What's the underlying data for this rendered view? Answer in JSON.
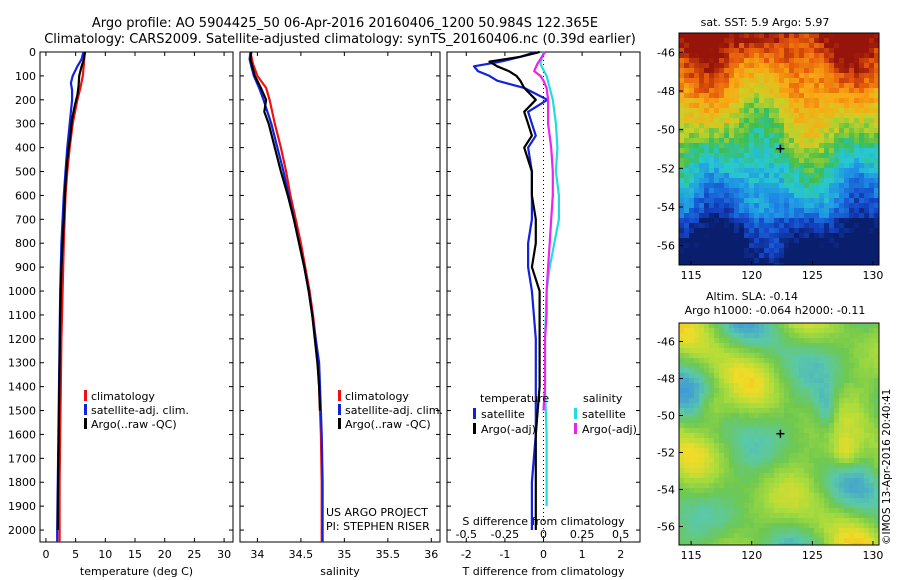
{
  "header": {
    "line1": "Argo profile: AO 5904425_50 06-Apr-2016 20160406_1200 50.984S 122.365E",
    "line2": "Climatology: CARS2009. Satellite-adjusted climatology: synTS_20160406.nc (0.39d earlier)"
  },
  "colors": {
    "climatology": "#ee1111",
    "satellite_adj": "#1122dd",
    "argo": "#000000",
    "salinity_satellite": "#22dddd",
    "salinity_argo": "#ee22ee"
  },
  "depth_ticks": [
    0,
    100,
    200,
    300,
    400,
    500,
    600,
    700,
    800,
    900,
    1000,
    1100,
    1200,
    1300,
    1400,
    1500,
    1600,
    1700,
    1800,
    1900,
    2000
  ],
  "chart_data": [
    {
      "type": "line",
      "name": "temperature_panel",
      "xlabel": "temperature (deg C)",
      "xlim": [
        -1,
        31.5
      ],
      "ylim": [
        2050,
        0
      ],
      "xticks": [
        0,
        5,
        10,
        15,
        20,
        25,
        30
      ],
      "xtick_labels": [
        "0",
        "5",
        "10",
        "15",
        "20",
        "25",
        "30"
      ],
      "legend": [
        "climatology",
        "satellite-adj. clim.",
        "Argo(..raw -QC)"
      ],
      "series": [
        {
          "name": "climatology",
          "color": "#ee1111",
          "depth": [
            0,
            50,
            100,
            150,
            200,
            250,
            300,
            400,
            500,
            600,
            800,
            1000,
            1200,
            1400,
            1600,
            1800,
            2000,
            2050
          ],
          "values": [
            6.5,
            6.4,
            6.2,
            5.8,
            5.3,
            4.9,
            4.5,
            4.0,
            3.6,
            3.3,
            3.0,
            2.8,
            2.6,
            2.5,
            2.4,
            2.3,
            2.3,
            2.3
          ]
        },
        {
          "name": "satellite-adj. clim.",
          "color": "#1122dd",
          "depth": [
            0,
            30,
            60,
            100,
            130,
            160,
            200,
            300,
            400,
            500,
            600,
            800,
            1000,
            1200,
            1400,
            1600,
            1800,
            2000,
            2050
          ],
          "values": [
            6.3,
            6.0,
            5.3,
            4.5,
            4.2,
            4.4,
            4.4,
            4.0,
            3.6,
            3.3,
            3.0,
            2.6,
            2.4,
            2.3,
            2.2,
            2.1,
            2.0,
            1.9,
            1.9
          ]
        },
        {
          "name": "Argo(..raw -QC)",
          "color": "#000000",
          "depth": [
            0,
            30,
            60,
            100,
            140,
            180,
            220,
            280,
            350,
            450,
            550,
            700,
            900,
            1100,
            1300,
            1500,
            1700,
            1900,
            2000
          ],
          "values": [
            6.6,
            6.4,
            6.0,
            5.6,
            5.5,
            5.3,
            4.9,
            4.4,
            4.1,
            3.6,
            3.3,
            3.0,
            2.6,
            2.4,
            2.3,
            2.2,
            2.1,
            2.0,
            2.0
          ]
        }
      ]
    },
    {
      "type": "line",
      "name": "salinity_panel",
      "xlabel": "salinity",
      "xlim": [
        33.8,
        36.1
      ],
      "ylim": [
        2050,
        0
      ],
      "xticks": [
        34,
        34.5,
        35,
        35.5,
        36
      ],
      "xtick_labels": [
        "34",
        "34.5",
        "35",
        "35.5",
        "36"
      ],
      "legend": [
        "climatology",
        "satellite-adj. clim.",
        "Argo(..raw -QC)"
      ],
      "annotation": [
        "US ARGO PROJECT",
        "PI: STEPHEN RISER"
      ],
      "series": [
        {
          "name": "climatology",
          "color": "#ee1111",
          "depth": [
            0,
            50,
            100,
            150,
            200,
            300,
            400,
            500,
            600,
            700,
            800,
            900,
            1000,
            1100,
            1200,
            1300,
            1400,
            1600,
            1800,
            2000,
            2050
          ],
          "values": [
            33.92,
            33.95,
            34.0,
            34.1,
            34.14,
            34.2,
            34.27,
            34.33,
            34.38,
            34.44,
            34.5,
            34.55,
            34.6,
            34.64,
            34.67,
            34.7,
            34.71,
            34.73,
            34.74,
            34.74,
            34.74
          ]
        },
        {
          "name": "satellite-adj. clim.",
          "color": "#1122dd",
          "depth": [
            0,
            30,
            60,
            100,
            150,
            200,
            300,
            400,
            500,
            600,
            700,
            800,
            900,
            1000,
            1100,
            1200,
            1300,
            1400,
            1600,
            1800,
            2000,
            2050
          ],
          "values": [
            33.92,
            33.91,
            33.93,
            33.96,
            34.02,
            34.07,
            34.16,
            34.23,
            34.3,
            34.36,
            34.42,
            34.48,
            34.54,
            34.59,
            34.63,
            34.67,
            34.71,
            34.72,
            34.74,
            34.75,
            34.75,
            34.75
          ]
        },
        {
          "name": "Argo(..raw -QC)",
          "color": "#000000",
          "depth": [
            0,
            30,
            60,
            100,
            150,
            200,
            250,
            300,
            400,
            500,
            600,
            700,
            800,
            900,
            1000,
            1100,
            1200,
            1300,
            1400,
            1500
          ],
          "values": [
            33.93,
            33.92,
            33.94,
            33.97,
            34.04,
            34.1,
            34.08,
            34.13,
            34.2,
            34.27,
            34.35,
            34.42,
            34.48,
            34.54,
            34.59,
            34.63,
            34.66,
            34.69,
            34.71,
            34.72
          ]
        }
      ]
    },
    {
      "type": "line",
      "name": "difference_panel",
      "xlabel": "T difference from climatology",
      "xlabel_top": "S difference from climatology",
      "xlim": [
        -2.5,
        2.5
      ],
      "ylim": [
        2050,
        0
      ],
      "xticks": [
        -2,
        -1,
        0,
        1,
        2
      ],
      "xtick_labels": [
        "-2",
        "-1",
        "0",
        "1",
        "2"
      ],
      "s_ticks": [
        -0.5,
        -0.25,
        0,
        0.25,
        0.5
      ],
      "s_tick_labels": [
        "-0.5",
        "-0.25",
        "0",
        "0.25",
        "0.5"
      ],
      "legend_title_left": "temperature",
      "legend_title_right": "salinity",
      "legend": [
        "satellite",
        "Argo(-adj)",
        "satellite",
        "Argo(-adj)"
      ],
      "series": [
        {
          "name": "satellite",
          "group": "temperature",
          "color": "#1122dd",
          "depth": [
            0,
            20,
            40,
            60,
            80,
            100,
            120,
            150,
            200,
            250,
            300,
            350,
            400,
            500,
            600,
            700,
            800,
            900,
            1000,
            1200,
            1400,
            1600,
            1800,
            2000
          ],
          "values": [
            -0.2,
            -0.6,
            -1.1,
            -1.8,
            -1.7,
            -1.4,
            -1.2,
            -0.5,
            0.1,
            -0.4,
            -0.3,
            -0.2,
            -0.4,
            -0.3,
            -0.3,
            -0.3,
            -0.4,
            -0.4,
            -0.3,
            -0.2,
            -0.2,
            -0.2,
            -0.3,
            -0.3
          ]
        },
        {
          "name": "Argo(-adj)",
          "group": "temperature",
          "color": "#000000",
          "depth": [
            0,
            20,
            40,
            60,
            80,
            100,
            120,
            150,
            200,
            250,
            300,
            350,
            400,
            500,
            600,
            700,
            800,
            900,
            1000,
            1200,
            1400,
            1600,
            1800,
            2000
          ],
          "values": [
            -0.1,
            -0.6,
            -1.4,
            -1.2,
            -0.9,
            -0.7,
            -0.6,
            -0.5,
            -0.2,
            -0.5,
            -0.4,
            -0.3,
            -0.5,
            -0.3,
            -0.3,
            -0.2,
            -0.2,
            -0.3,
            -0.1,
            -0.1,
            -0.1,
            -0.2,
            -0.2,
            -0.2
          ]
        },
        {
          "name": "satellite",
          "group": "salinity",
          "color": "#22dddd",
          "depth": [
            0,
            50,
            100,
            150,
            200,
            300,
            400,
            500,
            600,
            700,
            800,
            900,
            1000,
            1200,
            1400,
            1600,
            1800,
            1900
          ],
          "values": [
            0.0,
            -0.02,
            0.02,
            0.04,
            0.06,
            0.08,
            0.09,
            0.08,
            0.1,
            0.1,
            0.07,
            0.04,
            0.02,
            0.01,
            0.01,
            0.02,
            0.02,
            0.02
          ]
        },
        {
          "name": "Argo(-adj)",
          "group": "salinity",
          "color": "#ee22ee",
          "depth": [
            0,
            50,
            80,
            100,
            120,
            150,
            200,
            300,
            400,
            500,
            600,
            700,
            800,
            900,
            1000,
            1100,
            1200,
            1300,
            1400,
            1500
          ],
          "values": [
            0.01,
            -0.04,
            -0.06,
            -0.02,
            0.0,
            0.02,
            0.03,
            0.03,
            0.05,
            0.06,
            0.06,
            0.05,
            0.04,
            0.03,
            0.02,
            0.02,
            0.01,
            0.01,
            0.01,
            0.0
          ]
        }
      ]
    },
    {
      "type": "heatmap",
      "name": "sst_map",
      "title": "sat. SST: 5.9 Argo: 5.97",
      "xlim": [
        114,
        130.5
      ],
      "ylim": [
        -57,
        -45
      ],
      "xticks": [
        115,
        120,
        125,
        130
      ],
      "yticks": [
        -46,
        -48,
        -50,
        -52,
        -54,
        -56
      ],
      "marker": {
        "lon": 122.365,
        "lat": -50.984
      }
    },
    {
      "type": "heatmap",
      "name": "sla_map",
      "title_line1": "Altim. SLA: -0.14",
      "title_line2": "Argo h1000: -0.064 h2000: -0.11",
      "xlim": [
        114,
        130.5
      ],
      "ylim": [
        -57,
        -45
      ],
      "xticks": [
        115,
        120,
        125,
        130
      ],
      "yticks": [
        -46,
        -48,
        -50,
        -52,
        -54,
        -56
      ],
      "marker": {
        "lon": 122.365,
        "lat": -50.984
      }
    }
  ],
  "credit": "©IMOS 13-Apr-2016 20:40:41"
}
